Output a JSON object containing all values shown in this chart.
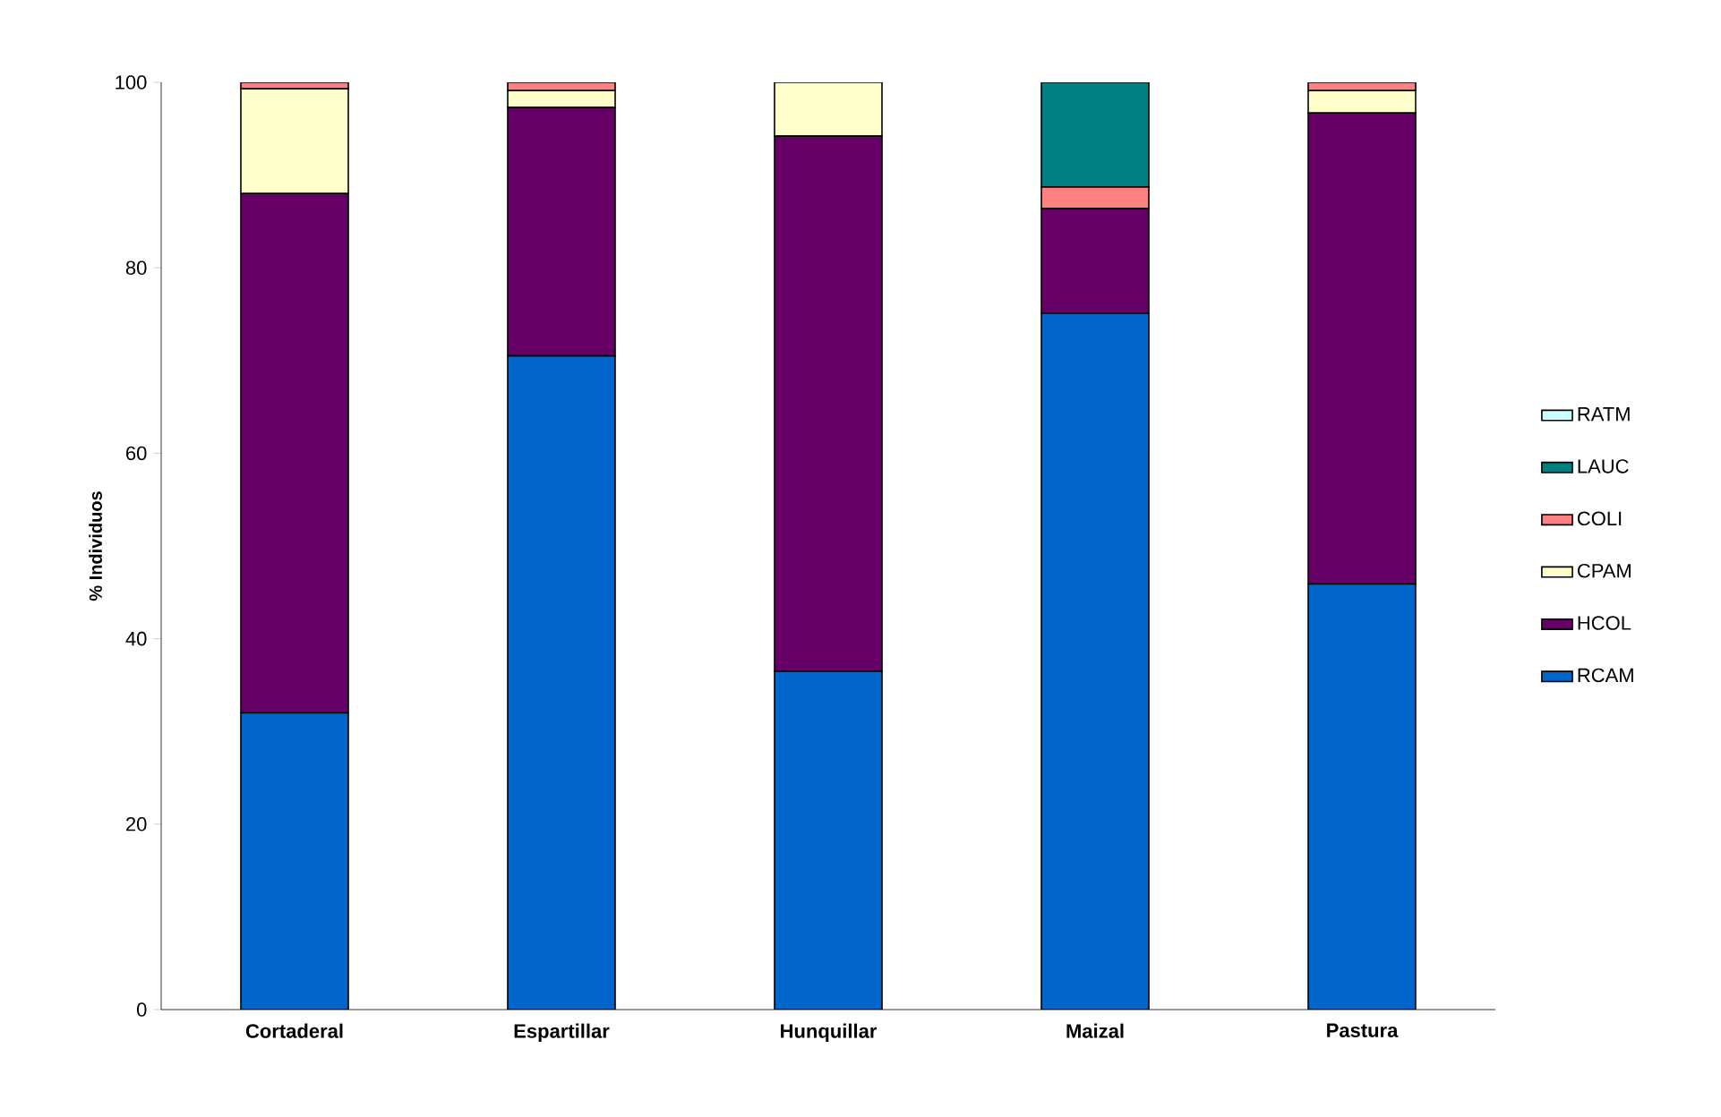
{
  "chart_data": {
    "type": "bar",
    "stacked": true,
    "ylabel": "% Individuos",
    "categories": [
      "Cortaderal",
      "Espartillar",
      "Hunquillar",
      "Maizal",
      "Pastura"
    ],
    "series": [
      {
        "name": "RCAM",
        "color": "#0066cc",
        "values": [
          32,
          70.5,
          36.5,
          75.1,
          45.9
        ]
      },
      {
        "name": "HCOL",
        "color": "#660066",
        "values": [
          56,
          26.8,
          57.7,
          11.3,
          50.8
        ]
      },
      {
        "name": "CPAM",
        "color": "#ffffcc",
        "values": [
          11.3,
          1.8,
          5.8,
          0,
          2.4
        ]
      },
      {
        "name": "COLI",
        "color": "#ff8080",
        "values": [
          0.7,
          0.9,
          0,
          2.3,
          0.9
        ]
      },
      {
        "name": "LAUC",
        "color": "#008080",
        "values": [
          0,
          0,
          0,
          11.3,
          0
        ]
      },
      {
        "name": "RATM",
        "color": "#ccffff",
        "values": [
          0,
          0,
          0,
          0,
          0
        ]
      }
    ],
    "ylim": [
      0,
      100
    ],
    "yticks": [
      0,
      20,
      40,
      60,
      80,
      100
    ],
    "legend": "right",
    "grid": false
  }
}
